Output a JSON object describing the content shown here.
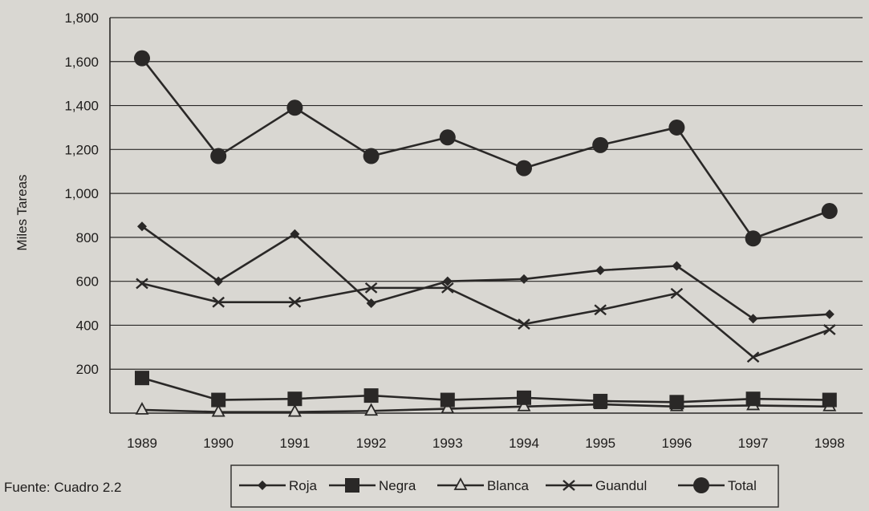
{
  "chart_data": {
    "type": "line",
    "title": "",
    "xlabel": "",
    "ylabel": "Miles Tareas",
    "x": [
      "1989",
      "1990",
      "1991",
      "1992",
      "1993",
      "1994",
      "1995",
      "1996",
      "1997",
      "1998"
    ],
    "ylim": [
      0,
      1800
    ],
    "yticks": [
      200,
      400,
      600,
      800,
      "1,000",
      "1,200",
      "1,400",
      "1,600",
      "1,800"
    ],
    "grid": true,
    "legend_position": "bottom",
    "series": [
      {
        "name": "Roja",
        "marker": "diamond",
        "values": [
          850,
          600,
          815,
          500,
          600,
          610,
          650,
          670,
          430,
          450
        ]
      },
      {
        "name": "Negra",
        "marker": "square",
        "values": [
          160,
          60,
          65,
          80,
          60,
          70,
          55,
          50,
          65,
          60
        ]
      },
      {
        "name": "Blanca",
        "marker": "triangle-open",
        "values": [
          15,
          5,
          5,
          10,
          20,
          30,
          40,
          30,
          35,
          30
        ]
      },
      {
        "name": "Guandul",
        "marker": "x",
        "values": [
          590,
          505,
          505,
          570,
          570,
          405,
          470,
          545,
          255,
          380
        ]
      },
      {
        "name": "Total",
        "marker": "circle",
        "values": [
          1615,
          1170,
          1390,
          1170,
          1255,
          1115,
          1220,
          1300,
          795,
          920
        ]
      }
    ],
    "source_note": "Fuente: Cuadro 2.2"
  },
  "colors": {
    "ink": "#2a2827",
    "paper": "#d9d7d2"
  }
}
